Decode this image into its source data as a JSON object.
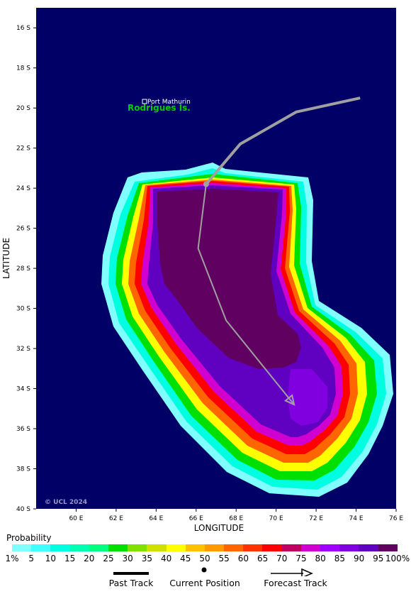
{
  "map": {
    "lat_ticks": [
      "16 S",
      "18 S",
      "20 S",
      "22 S",
      "24 S",
      "26 S",
      "28 S",
      "30 S",
      "32 S",
      "34 S",
      "36 S",
      "38 S",
      "40 S"
    ],
    "lon_ticks": [
      "60 E",
      "62 E",
      "64 E",
      "66 E",
      "68 E",
      "70 E",
      "72 E",
      "74 E",
      "76 E"
    ],
    "xlabel": "LONGITUDE",
    "ylabel": "LATITUDE",
    "place_label": "Port Mathurin",
    "island_label": "Rodrigues Is.",
    "copyright": "© UCL 2024",
    "ocean_color": "#000066"
  },
  "track": {
    "past_track_color": "#a0a0a0",
    "forecast_track_color": "#a0a0a0",
    "past_points": [
      [
        74.2,
        19.5
      ],
      [
        71.0,
        20.2
      ],
      [
        68.2,
        21.8
      ],
      [
        66.5,
        23.8
      ]
    ],
    "current_position": [
      66.5,
      23.8
    ],
    "forecast_points": [
      [
        66.5,
        23.8
      ],
      [
        66.1,
        27.0
      ],
      [
        67.5,
        30.6
      ],
      [
        70.9,
        34.8
      ]
    ]
  },
  "legend": {
    "title": "Probability",
    "labels": [
      "1%",
      "5",
      "10",
      "15",
      "20",
      "25",
      "30",
      "35",
      "40",
      "45",
      "50",
      "55",
      "60",
      "65",
      "70",
      "75",
      "80",
      "85",
      "90",
      "95",
      "100%"
    ],
    "colors": [
      "#80ffff",
      "#40ffff",
      "#00ffe0",
      "#00ffb0",
      "#00ff80",
      "#00e000",
      "#80e000",
      "#d0e000",
      "#ffff00",
      "#ffc000",
      "#ff9900",
      "#ff6600",
      "#ff3300",
      "#ff0000",
      "#c00060",
      "#d000d0",
      "#a000ff",
      "#8000e0",
      "#6000c0",
      "#600060"
    ],
    "past_track_label": "Past Track",
    "current_position_label": "Current Position",
    "forecast_track_label": "Forecast Track"
  }
}
